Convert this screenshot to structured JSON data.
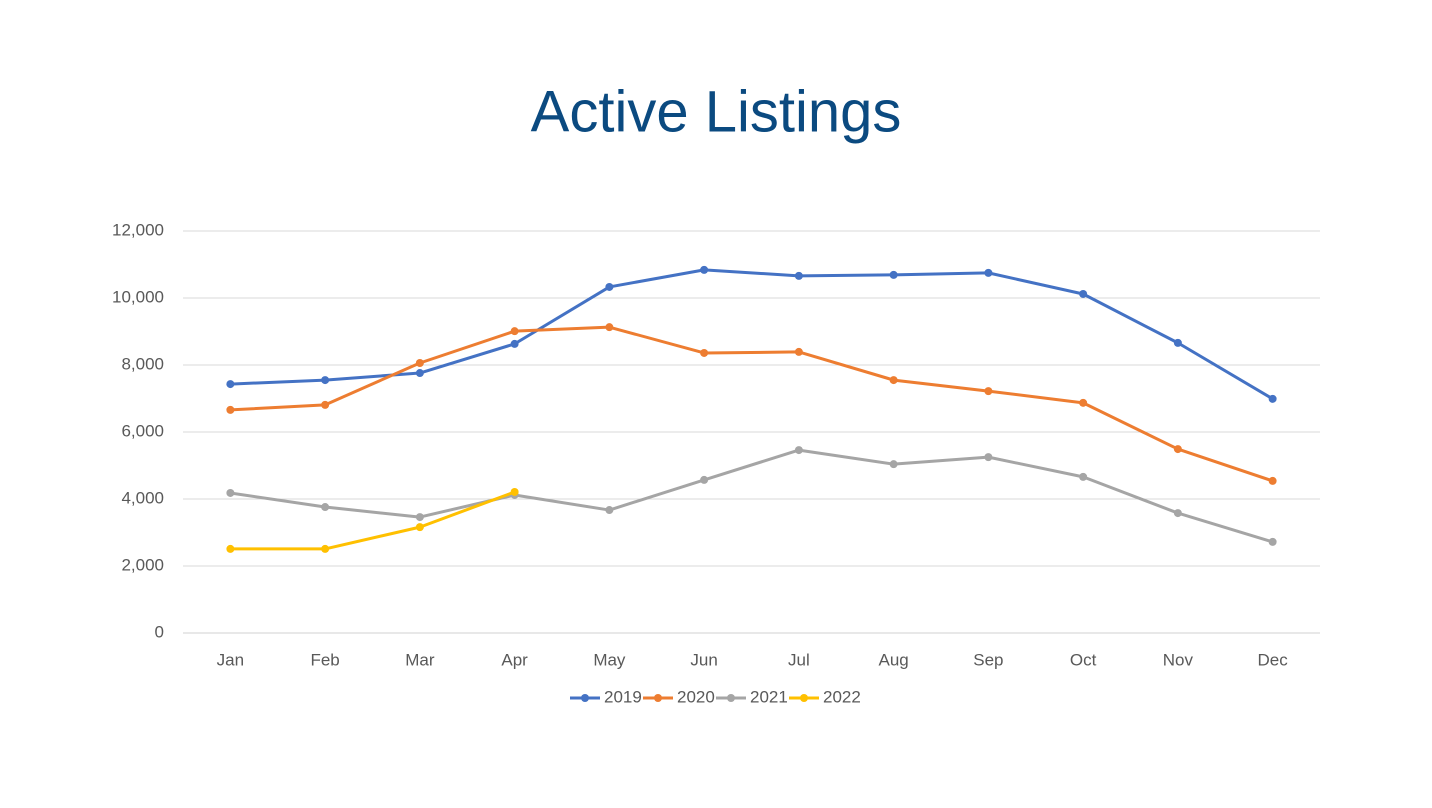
{
  "chart_data": {
    "type": "line",
    "title": "Active Listings",
    "categories": [
      "Jan",
      "Feb",
      "Mar",
      "Apr",
      "May",
      "Jun",
      "Jul",
      "Aug",
      "Sep",
      "Oct",
      "Nov",
      "Dec"
    ],
    "series": [
      {
        "name": "2019",
        "color": "#4472c4",
        "values": [
          7430,
          7550,
          7760,
          8630,
          10330,
          10840,
          10660,
          10690,
          10750,
          10120,
          8660,
          6990
        ]
      },
      {
        "name": "2020",
        "color": "#ed7d31",
        "values": [
          6660,
          6810,
          8060,
          9010,
          9130,
          8360,
          8390,
          7550,
          7220,
          6870,
          5490,
          4540
        ]
      },
      {
        "name": "2021",
        "color": "#a5a5a5",
        "values": [
          4180,
          3760,
          3460,
          4120,
          3670,
          4570,
          5460,
          5040,
          5250,
          4660,
          3580,
          2720
        ]
      },
      {
        "name": "2022",
        "color": "#ffc000",
        "values": [
          2510,
          2510,
          3160,
          4210,
          null,
          null,
          null,
          null,
          null,
          null,
          null,
          null
        ]
      }
    ],
    "ylim": [
      0,
      12000
    ],
    "yticks": [
      0,
      {
        "value": 2000,
        "label": "2,000"
      },
      {
        "value": 4000,
        "label": "4,000"
      },
      {
        "value": 6000,
        "label": "6,000"
      },
      {
        "value": 8000,
        "label": "8,000"
      },
      {
        "value": 10000,
        "label": "10,000"
      },
      {
        "value": 12000,
        "label": "12,000"
      }
    ],
    "grid": true,
    "legend": "bottom"
  }
}
